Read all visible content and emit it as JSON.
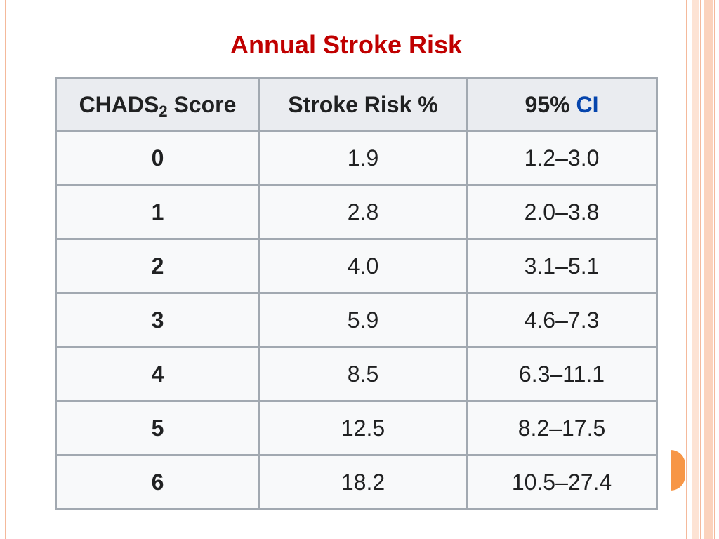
{
  "slide": {
    "title": "Annual Stroke Risk"
  },
  "colors": {
    "title": "#c00000",
    "link": "#0645ad",
    "accent": "#f79646",
    "border": "#a2a9b1"
  },
  "table": {
    "headers": {
      "score_main": "CHADS",
      "score_sub": "2",
      "score_tail": " Score",
      "risk": "Stroke Risk %",
      "ci_prefix": "95% ",
      "ci_link": "CI"
    },
    "rows": [
      {
        "score": "0",
        "risk": "1.9",
        "ci": "1.2–3.0"
      },
      {
        "score": "1",
        "risk": "2.8",
        "ci": "2.0–3.8"
      },
      {
        "score": "2",
        "risk": "4.0",
        "ci": "3.1–5.1"
      },
      {
        "score": "3",
        "risk": "5.9",
        "ci": "4.6–7.3"
      },
      {
        "score": "4",
        "risk": "8.5",
        "ci": "6.3–11.1"
      },
      {
        "score": "5",
        "risk": "12.5",
        "ci": "8.2–17.5"
      },
      {
        "score": "6",
        "risk": "18.2",
        "ci": "10.5–27.4"
      }
    ]
  }
}
